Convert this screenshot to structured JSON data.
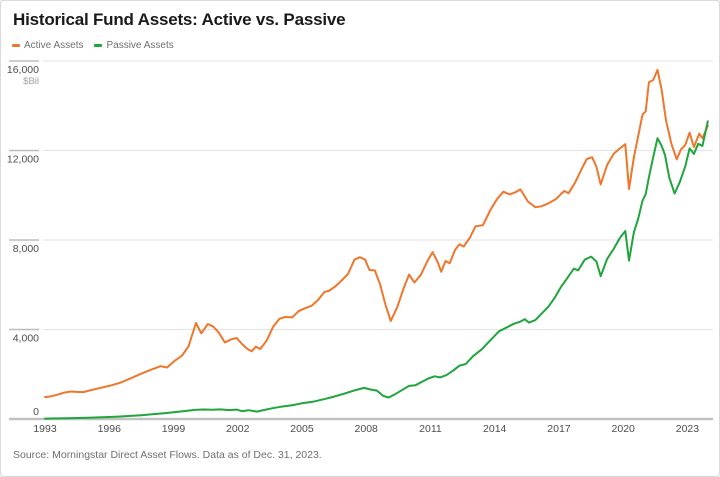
{
  "header": {
    "title": "Historical Fund Assets: Active vs. Passive"
  },
  "footer": {
    "source": "Source: Morningstar Direct Asset Flows. Data as of Dec. 31, 2023."
  },
  "chart_data": {
    "type": "line",
    "title": "Historical Fund Assets: Active vs. Passive",
    "unit_label": "$Bil",
    "xlabel": "",
    "ylabel": "",
    "xlim": [
      1993,
      2024.1
    ],
    "ylim": [
      0,
      16000
    ],
    "grid": "horizontal",
    "legend_position": "top-left",
    "xticks": [
      1993,
      1996,
      1999,
      2002,
      2005,
      2008,
      2011,
      2014,
      2017,
      2020,
      2023
    ],
    "yticks": [
      {
        "value": 16000,
        "label": "16,000"
      },
      {
        "value": 12000,
        "label": "12,000"
      },
      {
        "value": 8000,
        "label": "8,000"
      },
      {
        "value": 4000,
        "label": "4,000"
      },
      {
        "value": 0,
        "label": "0"
      }
    ],
    "series": [
      {
        "name": "Active Assets",
        "color": "#EF762B",
        "points": [
          [
            1993.0,
            980
          ],
          [
            1993.3,
            1020
          ],
          [
            1993.6,
            1090
          ],
          [
            1993.9,
            1180
          ],
          [
            1994.2,
            1230
          ],
          [
            1994.5,
            1210
          ],
          [
            1994.8,
            1200
          ],
          [
            1995.1,
            1280
          ],
          [
            1995.5,
            1370
          ],
          [
            1996.0,
            1480
          ],
          [
            1996.5,
            1620
          ],
          [
            1997.0,
            1820
          ],
          [
            1997.5,
            2030
          ],
          [
            1998.0,
            2220
          ],
          [
            1998.4,
            2360
          ],
          [
            1998.7,
            2300
          ],
          [
            1999.0,
            2560
          ],
          [
            1999.4,
            2840
          ],
          [
            1999.7,
            3250
          ],
          [
            2000.05,
            4290
          ],
          [
            2000.3,
            3830
          ],
          [
            2000.6,
            4240
          ],
          [
            2000.85,
            4140
          ],
          [
            2001.1,
            3880
          ],
          [
            2001.4,
            3420
          ],
          [
            2001.7,
            3560
          ],
          [
            2001.95,
            3620
          ],
          [
            2002.2,
            3350
          ],
          [
            2002.45,
            3130
          ],
          [
            2002.65,
            3030
          ],
          [
            2002.85,
            3230
          ],
          [
            2003.05,
            3130
          ],
          [
            2003.35,
            3500
          ],
          [
            2003.65,
            4120
          ],
          [
            2003.95,
            4480
          ],
          [
            2004.2,
            4560
          ],
          [
            2004.55,
            4540
          ],
          [
            2004.85,
            4830
          ],
          [
            2005.15,
            4950
          ],
          [
            2005.45,
            5060
          ],
          [
            2005.75,
            5320
          ],
          [
            2006.05,
            5680
          ],
          [
            2006.25,
            5720
          ],
          [
            2006.55,
            5920
          ],
          [
            2006.85,
            6190
          ],
          [
            2007.15,
            6480
          ],
          [
            2007.45,
            7120
          ],
          [
            2007.7,
            7230
          ],
          [
            2007.95,
            7120
          ],
          [
            2008.15,
            6660
          ],
          [
            2008.4,
            6640
          ],
          [
            2008.65,
            6020
          ],
          [
            2008.9,
            5100
          ],
          [
            2009.15,
            4380
          ],
          [
            2009.45,
            5000
          ],
          [
            2009.75,
            5850
          ],
          [
            2010.0,
            6460
          ],
          [
            2010.25,
            6100
          ],
          [
            2010.55,
            6440
          ],
          [
            2010.85,
            7050
          ],
          [
            2011.1,
            7460
          ],
          [
            2011.35,
            6980
          ],
          [
            2011.5,
            6580
          ],
          [
            2011.7,
            7060
          ],
          [
            2011.9,
            6960
          ],
          [
            2012.15,
            7560
          ],
          [
            2012.35,
            7810
          ],
          [
            2012.55,
            7710
          ],
          [
            2012.85,
            8120
          ],
          [
            2013.1,
            8610
          ],
          [
            2013.45,
            8660
          ],
          [
            2013.8,
            9340
          ],
          [
            2014.1,
            9820
          ],
          [
            2014.4,
            10160
          ],
          [
            2014.7,
            10040
          ],
          [
            2015.0,
            10150
          ],
          [
            2015.2,
            10260
          ],
          [
            2015.55,
            9720
          ],
          [
            2015.9,
            9460
          ],
          [
            2016.2,
            9510
          ],
          [
            2016.55,
            9660
          ],
          [
            2016.85,
            9820
          ],
          [
            2017.1,
            10060
          ],
          [
            2017.25,
            10190
          ],
          [
            2017.45,
            10090
          ],
          [
            2017.75,
            10560
          ],
          [
            2018.05,
            11150
          ],
          [
            2018.3,
            11620
          ],
          [
            2018.55,
            11700
          ],
          [
            2018.75,
            11280
          ],
          [
            2018.95,
            10480
          ],
          [
            2019.25,
            11350
          ],
          [
            2019.55,
            11850
          ],
          [
            2019.85,
            12100
          ],
          [
            2020.1,
            12280
          ],
          [
            2020.27,
            10280
          ],
          [
            2020.5,
            11700
          ],
          [
            2020.7,
            12650
          ],
          [
            2020.9,
            13600
          ],
          [
            2021.05,
            13750
          ],
          [
            2021.2,
            15050
          ],
          [
            2021.4,
            15150
          ],
          [
            2021.6,
            15600
          ],
          [
            2021.8,
            14700
          ],
          [
            2022.0,
            13350
          ],
          [
            2022.25,
            12300
          ],
          [
            2022.5,
            11600
          ],
          [
            2022.7,
            12050
          ],
          [
            2022.9,
            12250
          ],
          [
            2023.1,
            12800
          ],
          [
            2023.3,
            12150
          ],
          [
            2023.55,
            12750
          ],
          [
            2023.7,
            12550
          ],
          [
            2023.95,
            13100
          ]
        ]
      },
      {
        "name": "Passive Assets",
        "color": "#1FA53C",
        "points": [
          [
            1993.0,
            20
          ],
          [
            1993.5,
            28
          ],
          [
            1994.0,
            35
          ],
          [
            1994.5,
            45
          ],
          [
            1995.0,
            55
          ],
          [
            1995.5,
            70
          ],
          [
            1996.0,
            90
          ],
          [
            1996.5,
            110
          ],
          [
            1997.0,
            140
          ],
          [
            1997.5,
            170
          ],
          [
            1998.0,
            210
          ],
          [
            1998.5,
            250
          ],
          [
            1999.0,
            300
          ],
          [
            1999.5,
            355
          ],
          [
            2000.0,
            405
          ],
          [
            2000.4,
            425
          ],
          [
            2000.8,
            415
          ],
          [
            2001.2,
            430
          ],
          [
            2001.6,
            400
          ],
          [
            2001.95,
            420
          ],
          [
            2002.2,
            350
          ],
          [
            2002.5,
            395
          ],
          [
            2002.9,
            330
          ],
          [
            2003.2,
            400
          ],
          [
            2003.6,
            480
          ],
          [
            2004.0,
            545
          ],
          [
            2004.5,
            610
          ],
          [
            2005.0,
            700
          ],
          [
            2005.5,
            770
          ],
          [
            2006.0,
            880
          ],
          [
            2006.5,
            1000
          ],
          [
            2007.0,
            1140
          ],
          [
            2007.5,
            1290
          ],
          [
            2007.9,
            1390
          ],
          [
            2008.2,
            1320
          ],
          [
            2008.5,
            1270
          ],
          [
            2008.8,
            1030
          ],
          [
            2009.05,
            960
          ],
          [
            2009.35,
            1110
          ],
          [
            2009.7,
            1310
          ],
          [
            2010.0,
            1480
          ],
          [
            2010.3,
            1510
          ],
          [
            2010.6,
            1660
          ],
          [
            2010.9,
            1810
          ],
          [
            2011.2,
            1910
          ],
          [
            2011.45,
            1860
          ],
          [
            2011.75,
            1960
          ],
          [
            2012.05,
            2160
          ],
          [
            2012.35,
            2380
          ],
          [
            2012.65,
            2460
          ],
          [
            2013.0,
            2820
          ],
          [
            2013.4,
            3120
          ],
          [
            2013.8,
            3520
          ],
          [
            2014.2,
            3920
          ],
          [
            2014.6,
            4110
          ],
          [
            2014.9,
            4260
          ],
          [
            2015.15,
            4330
          ],
          [
            2015.4,
            4460
          ],
          [
            2015.6,
            4310
          ],
          [
            2015.9,
            4420
          ],
          [
            2016.2,
            4720
          ],
          [
            2016.5,
            5010
          ],
          [
            2016.8,
            5420
          ],
          [
            2017.1,
            5910
          ],
          [
            2017.4,
            6310
          ],
          [
            2017.7,
            6720
          ],
          [
            2017.9,
            6640
          ],
          [
            2018.2,
            7120
          ],
          [
            2018.5,
            7260
          ],
          [
            2018.75,
            7040
          ],
          [
            2018.95,
            6380
          ],
          [
            2019.25,
            7150
          ],
          [
            2019.55,
            7600
          ],
          [
            2019.85,
            8100
          ],
          [
            2020.1,
            8400
          ],
          [
            2020.27,
            7080
          ],
          [
            2020.5,
            8350
          ],
          [
            2020.7,
            8950
          ],
          [
            2020.9,
            9750
          ],
          [
            2021.05,
            10050
          ],
          [
            2021.2,
            10800
          ],
          [
            2021.4,
            11700
          ],
          [
            2021.6,
            12550
          ],
          [
            2021.8,
            12200
          ],
          [
            2021.95,
            11800
          ],
          [
            2022.15,
            10800
          ],
          [
            2022.4,
            10080
          ],
          [
            2022.65,
            10600
          ],
          [
            2022.9,
            11300
          ],
          [
            2023.1,
            12100
          ],
          [
            2023.3,
            11850
          ],
          [
            2023.5,
            12300
          ],
          [
            2023.7,
            12200
          ],
          [
            2023.95,
            13300
          ]
        ]
      }
    ]
  }
}
